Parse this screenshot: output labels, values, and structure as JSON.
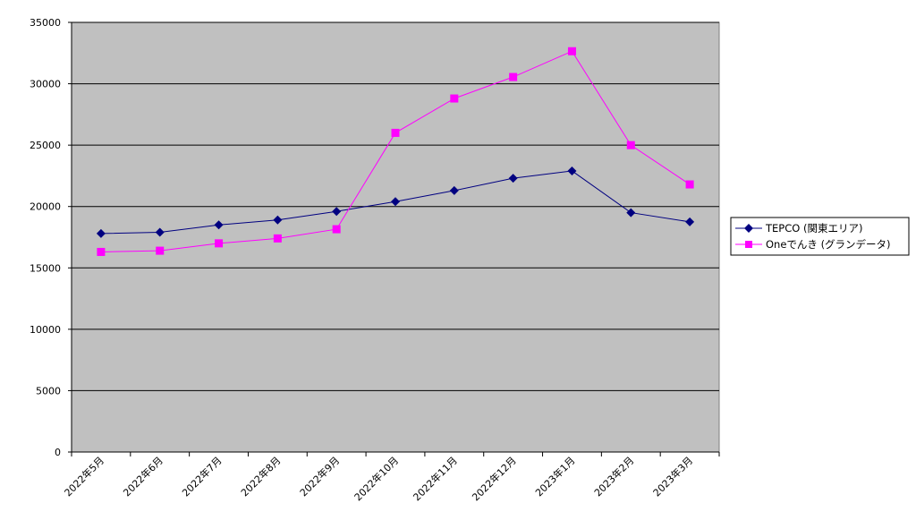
{
  "chart_data": {
    "type": "line",
    "title": "",
    "xlabel": "",
    "ylabel": "",
    "categories": [
      "2022年5月",
      "2022年6月",
      "2022年7月",
      "2022年8月",
      "2022年9月",
      "2022年10月",
      "2022年11月",
      "2022年12月",
      "2023年1月",
      "2023年2月",
      "2023年3月"
    ],
    "ylim": [
      0,
      35000
    ],
    "yticks": [
      "0",
      "5000",
      "10000",
      "15000",
      "20000",
      "25000",
      "30000",
      "35000"
    ],
    "grid": true,
    "legend_position": "right",
    "plot_background": "#c0c0c0",
    "series": [
      {
        "name": "TEPCO (関東エリア)",
        "color": "#000080",
        "marker": "diamond",
        "values": [
          17800,
          17900,
          18500,
          18900,
          19600,
          20400,
          21300,
          22300,
          22900,
          19500,
          18750
        ]
      },
      {
        "name": "Oneでんき (グランデータ)",
        "color": "#ff00ff",
        "marker": "square",
        "values": [
          16300,
          16400,
          17000,
          17400,
          18150,
          26000,
          28800,
          30550,
          32650,
          25000,
          21800
        ]
      }
    ]
  }
}
